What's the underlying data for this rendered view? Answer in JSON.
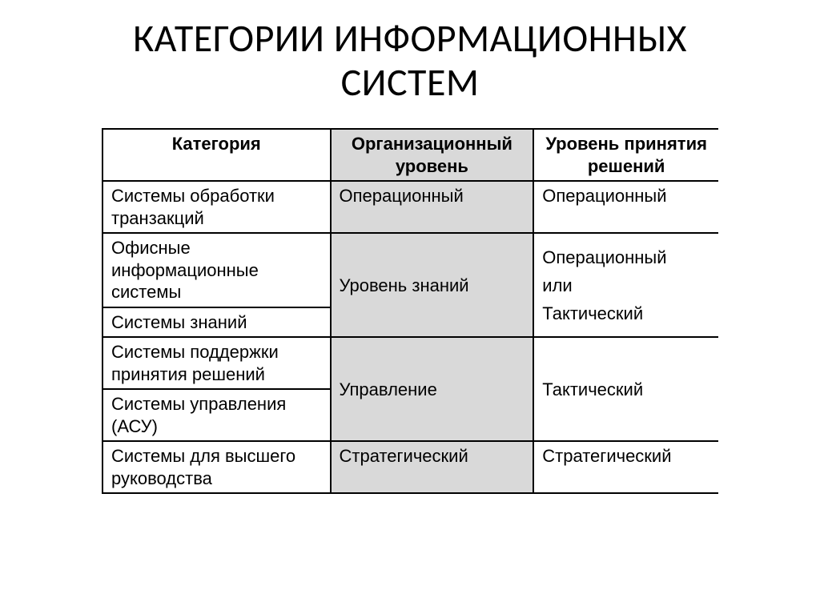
{
  "title_line1": "КАТЕГОРИИ  ИНФОРМАЦИОННЫХ",
  "title_line2": "СИСТЕМ",
  "table": {
    "type": "table",
    "background_color": "#ffffff",
    "border_color": "#000000",
    "shade_color": "#d9d9d9",
    "header_fontsize": 22,
    "body_fontsize": 22,
    "columns": [
      {
        "label": "Категория",
        "width_pct": 37,
        "align": "left"
      },
      {
        "label": "Организационный уровень",
        "width_pct": 33,
        "align": "left",
        "shaded": true
      },
      {
        "label": "Уровень принятия решений",
        "width_pct": 30,
        "align": "left"
      }
    ],
    "rows": [
      {
        "category": "Системы обработки транзакций",
        "org": "Операционный",
        "dec": "Операционный",
        "org_rowspan": 1,
        "dec_rowspan": 1
      },
      {
        "category": "Офисные информационные системы",
        "org": "Уровень знаний",
        "dec": "Операционный или Тактический",
        "org_rowspan": 2,
        "dec_rowspan": 2
      },
      {
        "category": "Системы знаний"
      },
      {
        "category": "Системы поддержки принятия решений",
        "org": "Управление",
        "dec": "Тактический",
        "org_rowspan": 2,
        "dec_rowspan": 2
      },
      {
        "category": "Системы управления (АСУ)"
      },
      {
        "category": "Системы для высшего руководства",
        "org": "Стратегический",
        "dec": "Стратегический",
        "org_rowspan": 1,
        "dec_rowspan": 1
      }
    ]
  },
  "cells": {
    "r1c1": "Системы обработки транзакций",
    "r1c2": "Операционный",
    "r1c3": "Операционный",
    "r2c1": "Офисные информационные системы",
    "r23c2": "Уровень знаний",
    "r23c3_l1": "Операционный",
    "r23c3_l2": "или",
    "r23c3_l3": "Тактический",
    "r3c1": "Системы знаний",
    "r4c1": "Системы поддержки принятия решений",
    "r45c2": "Управление",
    "r45c3": "Тактический",
    "r5c1": "Системы управления (АСУ)",
    "r6c1": "Системы для высшего руководства",
    "r6c2": "Стратегический",
    "r6c3": "Стратегический"
  }
}
